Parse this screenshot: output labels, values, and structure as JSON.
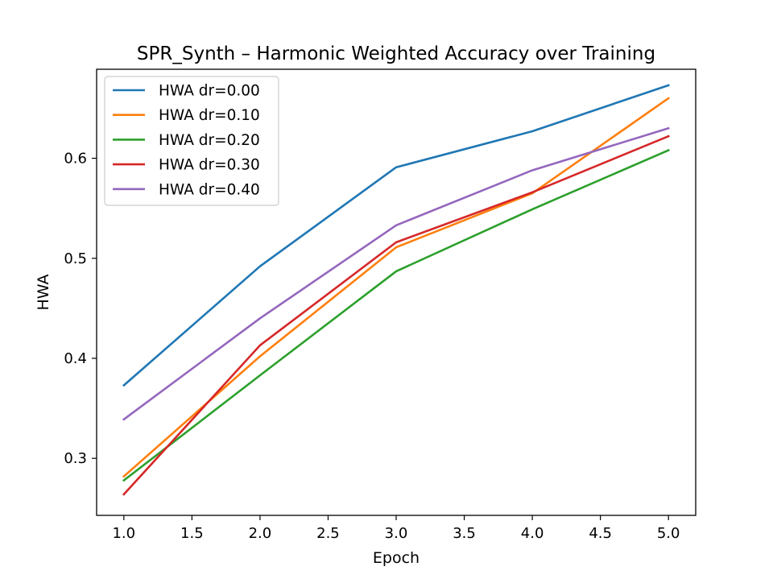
{
  "chart_data": {
    "type": "line",
    "title": "SPR_Synth – Harmonic Weighted Accuracy over Training",
    "xlabel": "Epoch",
    "ylabel": "HWA",
    "x": [
      1.0,
      2.0,
      3.0,
      4.0,
      5.0
    ],
    "xlim": [
      0.8,
      5.2
    ],
    "ylim": [
      0.243,
      0.689
    ],
    "xticks": [
      1.0,
      1.5,
      2.0,
      2.5,
      3.0,
      3.5,
      4.0,
      4.5,
      5.0
    ],
    "xtick_labels": [
      "1.0",
      "1.5",
      "2.0",
      "2.5",
      "3.0",
      "3.5",
      "4.0",
      "4.5",
      "5.0"
    ],
    "yticks": [
      0.3,
      0.4,
      0.5,
      0.6
    ],
    "ytick_labels": [
      "0.3",
      "0.4",
      "0.5",
      "0.6"
    ],
    "grid": false,
    "legend_position": "top-left",
    "series": [
      {
        "name": "HWA dr=0.00",
        "color": "#1f77b4",
        "values": [
          0.373,
          0.492,
          0.591,
          0.627,
          0.673
        ]
      },
      {
        "name": "HWA dr=0.10",
        "color": "#ff7f0e",
        "values": [
          0.282,
          0.402,
          0.511,
          0.565,
          0.66
        ]
      },
      {
        "name": "HWA dr=0.20",
        "color": "#2ca02c",
        "values": [
          0.278,
          0.383,
          0.487,
          0.549,
          0.608
        ]
      },
      {
        "name": "HWA dr=0.30",
        "color": "#d62728",
        "values": [
          0.264,
          0.413,
          0.516,
          0.566,
          0.622
        ]
      },
      {
        "name": "HWA dr=0.40",
        "color": "#9467bd",
        "values": [
          0.339,
          0.44,
          0.533,
          0.588,
          0.63
        ]
      }
    ]
  }
}
